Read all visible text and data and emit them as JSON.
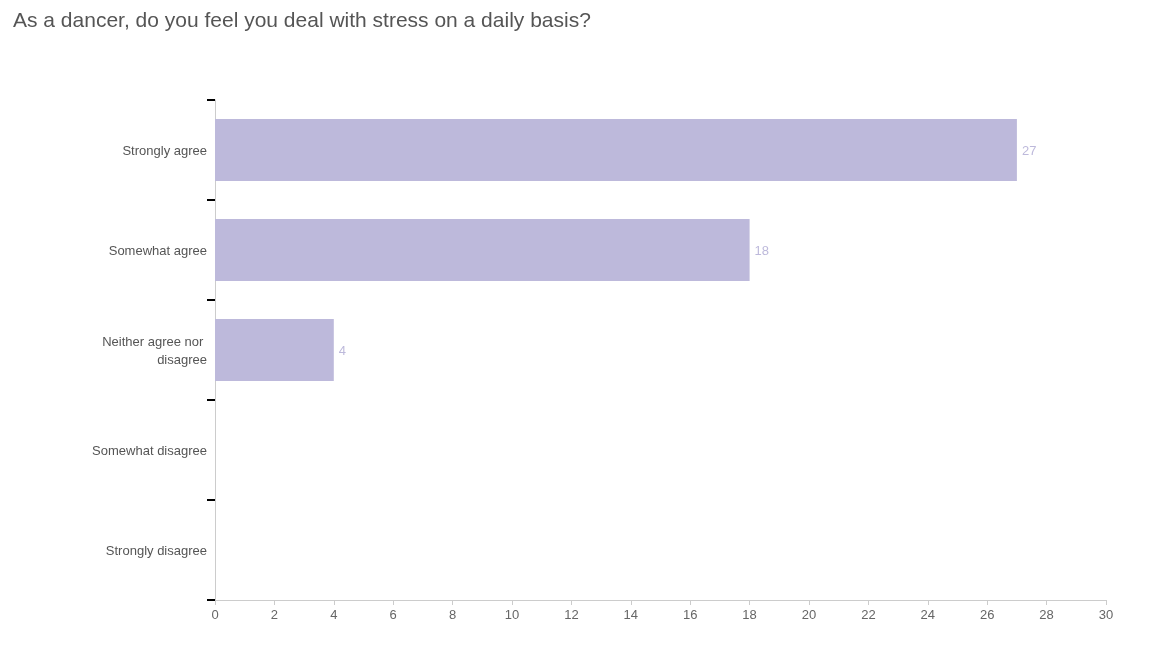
{
  "chart_data": {
    "type": "bar",
    "orientation": "horizontal",
    "title": "As a dancer, do you feel you deal with stress on a daily basis?",
    "categories": [
      "Strongly agree",
      "Somewhat agree",
      "Neither agree nor disagree",
      "Somewhat disagree",
      "Strongly disagree"
    ],
    "values": [
      27,
      18,
      4,
      0,
      0
    ],
    "color": "#bdb9db",
    "value_labels": [
      "27",
      "18",
      "4",
      null,
      null
    ],
    "xlim": [
      0,
      30
    ],
    "xticks": [
      0,
      2,
      4,
      6,
      8,
      10,
      12,
      14,
      16,
      18,
      20,
      22,
      24,
      26,
      28,
      30
    ],
    "grid": false
  }
}
